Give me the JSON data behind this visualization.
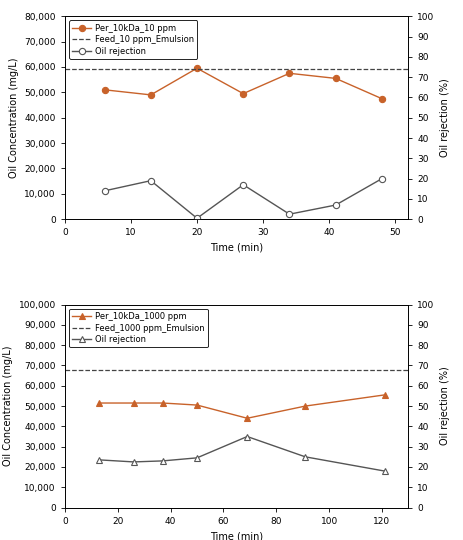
{
  "top": {
    "time": [
      6,
      13,
      20,
      27,
      34,
      41,
      48
    ],
    "conc": [
      51000,
      49000,
      59500,
      49500,
      57500,
      55500,
      47500
    ],
    "rejection_pct": [
      14,
      19,
      0.5,
      17,
      2.5,
      7,
      20
    ],
    "feed_line": 59200,
    "xlim": [
      0,
      52
    ],
    "ylim_left": [
      0,
      80000
    ],
    "ylim_right": [
      0,
      100
    ],
    "xlabel": "Time (min)",
    "ylabel_left": "Oil Concentration (mg/L)",
    "ylabel_right": "Oil rejection (%)",
    "legend_conc": "Per_10kDa_10 ppm",
    "legend_feed": "Feed_10 ppm_Emulsion",
    "legend_rej": "Oil rejection",
    "xticks": [
      0,
      10,
      20,
      30,
      40,
      50
    ],
    "yticks_left": [
      0,
      10000,
      20000,
      30000,
      40000,
      50000,
      60000,
      70000,
      80000
    ],
    "yticks_right": [
      0,
      10,
      20,
      30,
      40,
      50,
      60,
      70,
      80,
      90,
      100
    ]
  },
  "bottom": {
    "time": [
      13,
      26,
      37,
      50,
      69,
      91,
      121
    ],
    "conc": [
      51500,
      51500,
      51500,
      50500,
      44000,
      50000,
      55500
    ],
    "rejection_pct": [
      23.5,
      22.5,
      23,
      24.5,
      35,
      25,
      18
    ],
    "feed_line": 68000,
    "xlim": [
      0,
      130
    ],
    "ylim_left": [
      0,
      100000
    ],
    "ylim_right": [
      0,
      100
    ],
    "xlabel": "Time (min)",
    "ylabel_left": "Oil Concentration (mg/L)",
    "ylabel_right": "Oil rejection (%)",
    "legend_conc": "Per_10kDa_1000 ppm",
    "legend_feed": "Feed_1000 ppm_Emulsion",
    "legend_rej": "Oil rejection",
    "xticks": [
      0,
      20,
      40,
      60,
      80,
      100,
      120
    ],
    "yticks_left": [
      0,
      10000,
      20000,
      30000,
      40000,
      50000,
      60000,
      70000,
      80000,
      90000,
      100000
    ],
    "yticks_right": [
      0,
      10,
      20,
      30,
      40,
      50,
      60,
      70,
      80,
      90,
      100
    ]
  },
  "line_color_conc": "#C8622A",
  "line_color_rej": "#555555",
  "marker_face_conc": "#C8622A",
  "marker_face_rej": "white",
  "marker_edge_rej": "#555555",
  "font_size": 6.5,
  "label_font_size": 7,
  "legend_font_size": 6,
  "tick_size": 3,
  "linewidth": 1.0,
  "markersize": 4.5
}
